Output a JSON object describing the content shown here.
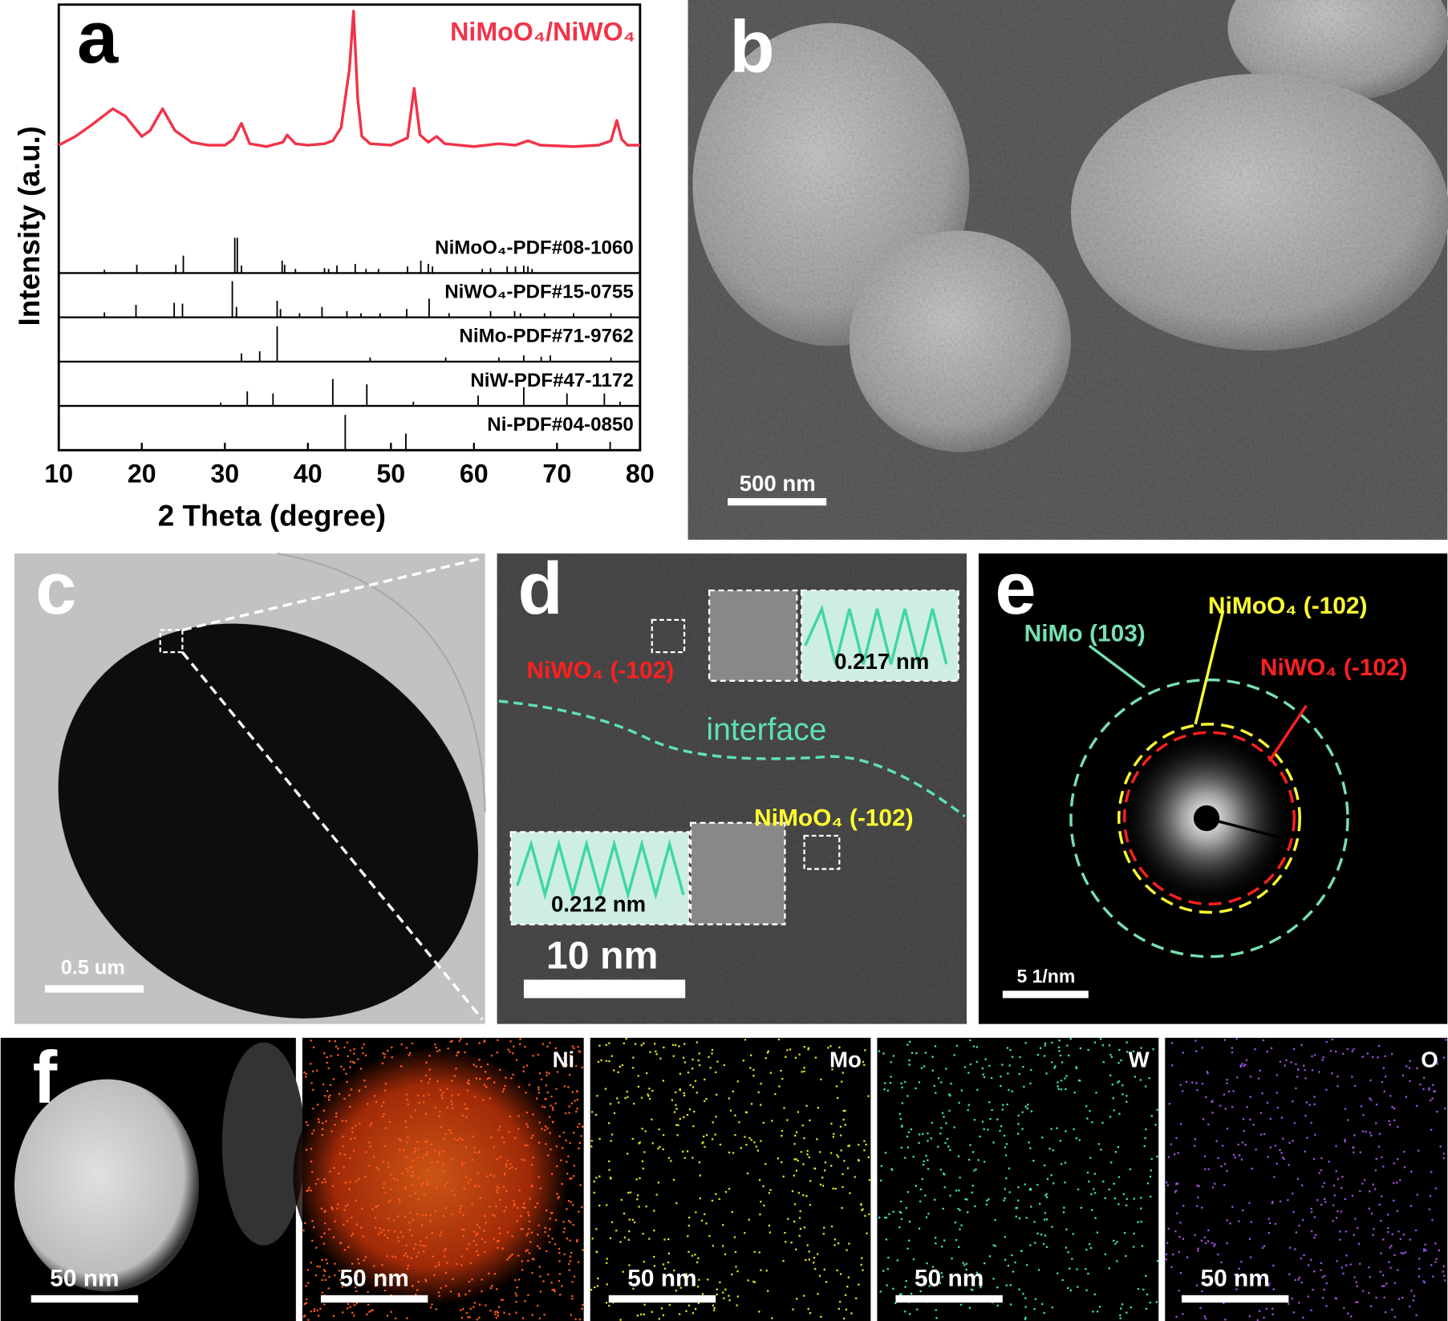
{
  "chart_data": {
    "type": "line",
    "panel_label": "a",
    "x_label": "2 Theta (degree)",
    "y_label": "Intensity (a.u.)",
    "xlim": [
      10,
      80
    ],
    "xticks": [
      10,
      20,
      30,
      40,
      50,
      60,
      70,
      80
    ],
    "series": [
      {
        "name": "NiMoO₄/NiWO₄",
        "color": "#f0344a",
        "x": [
          10,
          12,
          14,
          16.5,
          18,
          20,
          21,
          22.5,
          24,
          26,
          28,
          30,
          31,
          32,
          33,
          35,
          37,
          37.5,
          38.5,
          40,
          42,
          43,
          44,
          45,
          45.5,
          46,
          46.5,
          47.5,
          50,
          52,
          52.8,
          53.5,
          54.5,
          55.5,
          56.5,
          60,
          63,
          65,
          66.5,
          68,
          72,
          75,
          76.5,
          77.2,
          77.8,
          78.5,
          80
        ],
        "values": [
          8,
          14,
          22,
          33,
          28,
          14,
          18,
          33,
          18,
          10,
          8,
          8,
          12,
          23,
          9,
          7,
          10,
          15,
          9,
          8,
          9,
          11,
          20,
          60,
          100,
          40,
          14,
          9,
          8,
          13,
          47,
          15,
          10,
          14,
          9,
          7,
          9,
          8,
          11,
          8,
          7,
          8,
          11,
          25,
          12,
          8,
          8
        ]
      }
    ],
    "references": [
      {
        "name": "NiMoO₄-PDF#08-1060",
        "x": [
          15.5,
          19.4,
          24.1,
          25.0,
          31.2,
          31.5,
          32.0,
          36.9,
          37.2,
          38.5,
          42.0,
          42.5,
          43.5,
          45.7,
          47.0,
          48.5,
          52.0,
          53.6,
          54.5,
          55.0,
          61.0,
          62.0,
          64.0,
          65.0,
          66.0,
          66.5,
          67.0
        ],
        "values": [
          8,
          20,
          20,
          42,
          85,
          85,
          18,
          30,
          20,
          10,
          12,
          10,
          18,
          22,
          10,
          10,
          16,
          30,
          22,
          16,
          10,
          12,
          16,
          16,
          18,
          16,
          10
        ]
      },
      {
        "name": "NiWO₄-PDF#15-0755",
        "x": [
          15.5,
          19.3,
          23.9,
          24.9,
          30.9,
          31.4,
          36.3,
          36.7,
          39.0,
          41.7,
          44.7,
          46.4,
          48.7,
          51.9,
          54.6,
          57.0,
          62.0,
          64.9,
          65.6,
          68.5,
          72.0,
          76.5
        ],
        "values": [
          12,
          30,
          35,
          33,
          87,
          25,
          40,
          20,
          10,
          25,
          15,
          10,
          10,
          20,
          45,
          10,
          15,
          15,
          10,
          10,
          10,
          10
        ]
      },
      {
        "name": "NiMo-PDF#71-9762",
        "x": [
          32.0,
          34.2,
          36.3,
          47.5,
          56.6,
          63.0,
          66.0,
          68.1,
          69.2,
          76.5
        ],
        "values": [
          20,
          25,
          85,
          10,
          10,
          10,
          15,
          12,
          15,
          10
        ]
      },
      {
        "name": "NiW-PDF#47-1172",
        "x": [
          29.5,
          32.7,
          35.8,
          43.0,
          47.1,
          52.7,
          60.5,
          66.0,
          71.2,
          75.7,
          77.6
        ],
        "values": [
          8,
          35,
          30,
          65,
          52,
          10,
          25,
          45,
          30,
          30,
          10
        ]
      },
      {
        "name": "Ni-PDF#04-0850",
        "x": [
          44.5,
          51.8,
          76.4
        ],
        "values": [
          85,
          40,
          20
        ]
      }
    ]
  },
  "panels": {
    "b": {
      "label": "b",
      "scale_bar": "500 nm"
    },
    "c": {
      "label": "c",
      "scale_bar": "0.5 um"
    },
    "d": {
      "label": "d",
      "top_phase": "NiWO₄ (-102)",
      "top_spacing": "0.217 nm",
      "interface": "interface",
      "bottom_phase": "NiMoO₄ (-102)",
      "bottom_spacing": "0.212 nm",
      "scale_bar": "10 nm"
    },
    "e": {
      "label": "e",
      "ring_green": "NiMo (103)",
      "ring_yellow": "NiMoO₄ (-102)",
      "ring_red": "NiWO₄ (-102)",
      "scale_bar": "5 1/nm"
    },
    "f": {
      "label": "f",
      "tiles": [
        {
          "element": null,
          "scale_bar": "50 nm"
        },
        {
          "element": "Ni",
          "scale_bar": "50 nm"
        },
        {
          "element": "Mo",
          "scale_bar": "50 nm"
        },
        {
          "element": "W",
          "scale_bar": "50 nm"
        },
        {
          "element": "O",
          "scale_bar": "50 nm"
        }
      ]
    }
  }
}
